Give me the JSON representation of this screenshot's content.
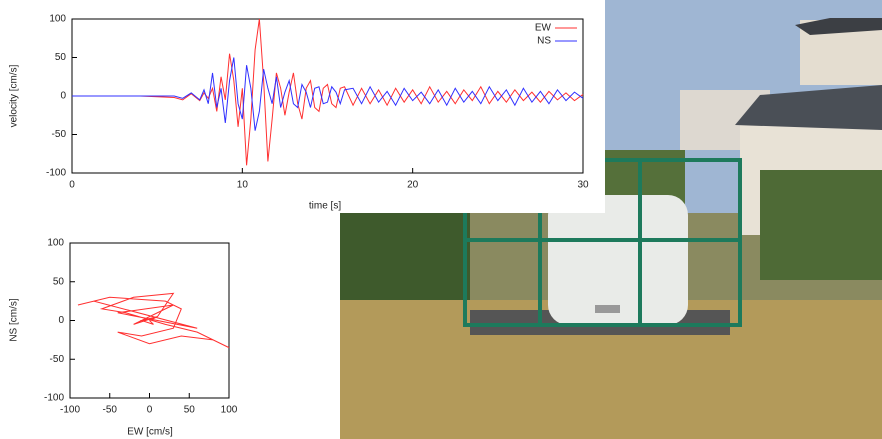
{
  "chart_data": [
    {
      "type": "line",
      "x_label": "time [s]",
      "y_label": "velocity [cm/s]",
      "x": [
        0,
        2,
        4,
        6,
        6.5,
        7,
        7.5,
        7.75,
        8,
        8.25,
        8.5,
        8.75,
        9,
        9.25,
        9.5,
        9.75,
        10,
        10.25,
        10.5,
        10.75,
        11,
        11.25,
        11.5,
        11.75,
        12,
        12.25,
        12.5,
        12.75,
        13,
        13.25,
        13.5,
        13.75,
        14,
        14.25,
        14.5,
        14.75,
        15,
        15.25,
        15.5,
        15.75,
        16,
        16.5,
        17,
        17.5,
        18,
        18.5,
        19,
        19.5,
        20,
        20.5,
        21,
        21.5,
        22,
        22.5,
        23,
        23.5,
        24,
        24.5,
        25,
        25.5,
        26,
        26.5,
        27,
        27.5,
        28,
        28.5,
        29,
        29.5,
        30
      ],
      "series": [
        {
          "name": "EW",
          "color": "#ff3030",
          "values": [
            0,
            0,
            0,
            -2,
            -5,
            3,
            -6,
            4,
            -3,
            10,
            -20,
            25,
            -5,
            55,
            20,
            -40,
            10,
            -90,
            -30,
            60,
            100,
            20,
            -85,
            -30,
            30,
            10,
            -25,
            5,
            30,
            -10,
            -30,
            10,
            20,
            -15,
            -20,
            10,
            15,
            -10,
            -15,
            10,
            12,
            -12,
            10,
            -10,
            8,
            -12,
            10,
            -8,
            8,
            -10,
            12,
            -8,
            6,
            -10,
            8,
            -6,
            12,
            -10,
            6,
            -8,
            8,
            -6,
            5,
            -8,
            6,
            -5,
            4,
            -6,
            2
          ]
        },
        {
          "name": "NS",
          "color": "#3030ff",
          "values": [
            0,
            0,
            0,
            0,
            -3,
            4,
            -5,
            8,
            -10,
            30,
            -15,
            10,
            -35,
            20,
            50,
            -10,
            -30,
            40,
            10,
            -45,
            -20,
            35,
            10,
            -10,
            25,
            -15,
            5,
            20,
            -10,
            -15,
            15,
            5,
            -15,
            10,
            12,
            -10,
            -8,
            12,
            5,
            -10,
            8,
            10,
            -10,
            12,
            -8,
            6,
            -12,
            10,
            -6,
            5,
            -10,
            8,
            -12,
            10,
            -8,
            6,
            -10,
            12,
            -6,
            8,
            -12,
            10,
            -8,
            6,
            -10,
            8,
            -6,
            5,
            -3
          ]
        }
      ],
      "xlim": [
        0,
        30
      ],
      "ylim": [
        -100,
        100
      ],
      "xticks": [
        0,
        10,
        20,
        30
      ],
      "yticks": [
        -100,
        -50,
        0,
        50,
        100
      ],
      "legend": "upper right"
    },
    {
      "type": "line",
      "x_label": "EW [cm/s]",
      "y_label": "NS [cm/s]",
      "x": [
        0,
        10,
        -20,
        30,
        -40,
        60,
        -70,
        -90,
        -50,
        20,
        40,
        30,
        -10,
        -40,
        0,
        40,
        80,
        100,
        60,
        20,
        -30,
        -60,
        -20,
        30,
        10,
        -10,
        5,
        0
      ],
      "series": [
        {
          "color": "#ff3030",
          "values": [
            0,
            5,
            -5,
            20,
            10,
            -10,
            25,
            20,
            30,
            25,
            15,
            -10,
            -20,
            -15,
            -30,
            -20,
            -25,
            -35,
            -15,
            -5,
            10,
            15,
            30,
            35,
            5,
            0,
            -5,
            0
          ]
        }
      ],
      "xlim": [
        -100,
        100
      ],
      "ylim": [
        -100,
        100
      ],
      "xticks": [
        -100,
        -50,
        0,
        50,
        100
      ],
      "yticks": [
        -100,
        -50,
        0,
        50,
        100
      ]
    }
  ]
}
